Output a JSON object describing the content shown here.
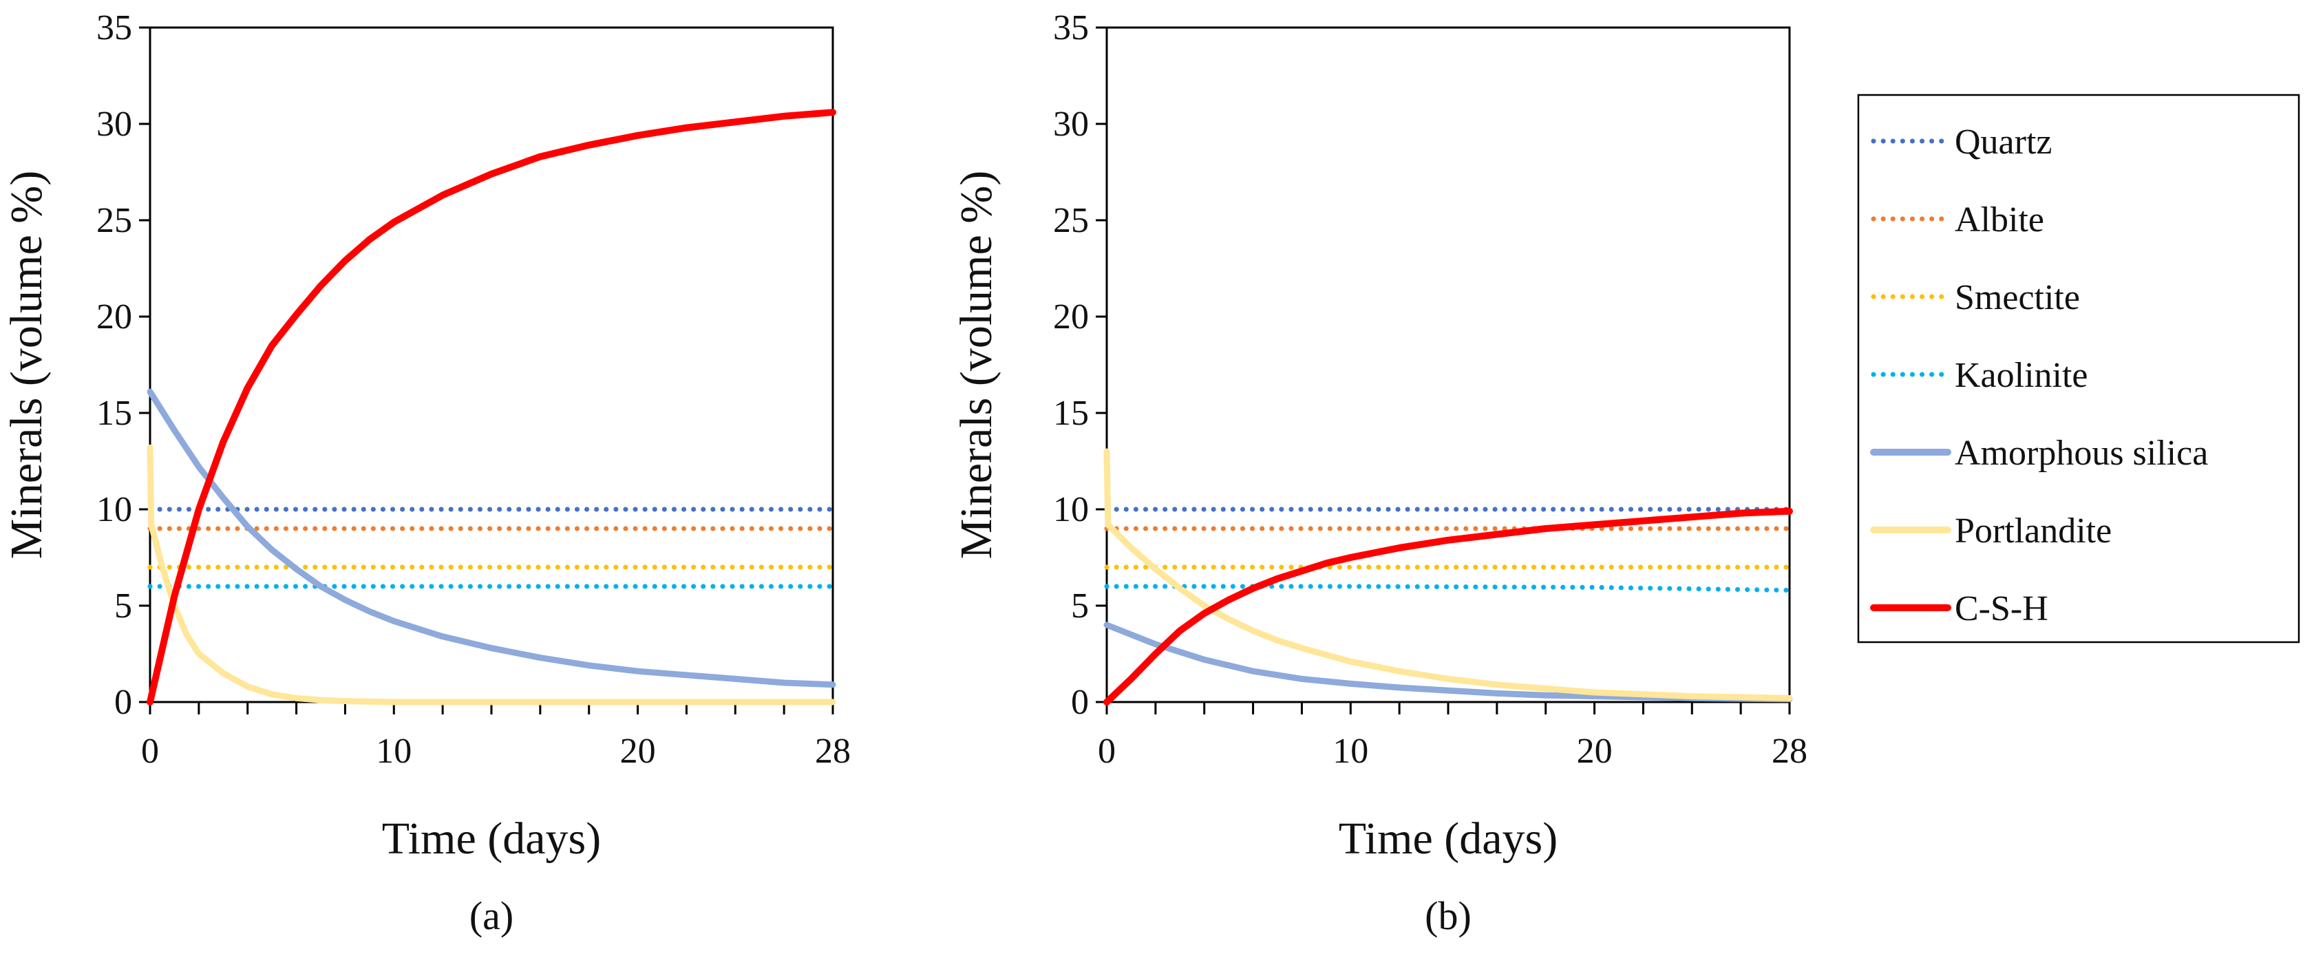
{
  "chart_data": [
    {
      "type": "line",
      "panel_label": "(a)",
      "xlabel": "Time (days)",
      "ylabel": "Minerals (volume %)",
      "xlim": [
        0,
        28
      ],
      "ylim": [
        0,
        35
      ],
      "xticks": [
        0,
        10,
        20,
        28
      ],
      "yticks": [
        0,
        5,
        10,
        15,
        20,
        25,
        30,
        35
      ],
      "series": [
        {
          "name": "Quartz",
          "style": "dotted",
          "color": "#4472C4",
          "x": [
            0,
            28
          ],
          "y": [
            10,
            10
          ]
        },
        {
          "name": "Albite",
          "style": "dotted",
          "color": "#ED7D31",
          "x": [
            0,
            28
          ],
          "y": [
            9,
            9
          ]
        },
        {
          "name": "Smectite",
          "style": "dotted",
          "color": "#FFC000",
          "x": [
            0,
            28
          ],
          "y": [
            7,
            7
          ]
        },
        {
          "name": "Kaolinite",
          "style": "dotted",
          "color": "#00B0F0",
          "x": [
            0,
            28
          ],
          "y": [
            6,
            6
          ]
        },
        {
          "name": "Amorphous silica",
          "style": "solid",
          "color": "#8EA9DB",
          "x": [
            0,
            1,
            2,
            3,
            4,
            5,
            6,
            7,
            8,
            9,
            10,
            12,
            14,
            16,
            18,
            20,
            22,
            24,
            26,
            28
          ],
          "y": [
            16.1,
            14.1,
            12.2,
            10.6,
            9.1,
            7.9,
            6.9,
            6.0,
            5.3,
            4.7,
            4.2,
            3.4,
            2.8,
            2.3,
            1.9,
            1.6,
            1.4,
            1.2,
            1.0,
            0.9
          ]
        },
        {
          "name": "Portlandite",
          "style": "solid",
          "color": "#FFE699",
          "x": [
            0,
            0.05,
            0.5,
            1,
            1.5,
            2,
            3,
            4,
            5,
            6,
            7,
            8,
            10,
            28
          ],
          "y": [
            13.2,
            9.2,
            7.0,
            5.0,
            3.5,
            2.5,
            1.5,
            0.8,
            0.4,
            0.2,
            0.1,
            0.05,
            0,
            0
          ]
        },
        {
          "name": "C-S-H",
          "style": "solid",
          "color": "#FF0000",
          "x": [
            0,
            1,
            2,
            3,
            4,
            5,
            6,
            7,
            8,
            9,
            10,
            12,
            14,
            16,
            18,
            20,
            22,
            24,
            26,
            28
          ],
          "y": [
            0,
            5.5,
            10.0,
            13.5,
            16.3,
            18.5,
            20.1,
            21.6,
            22.9,
            24.0,
            24.9,
            26.3,
            27.4,
            28.3,
            28.9,
            29.4,
            29.8,
            30.1,
            30.4,
            30.6
          ]
        }
      ]
    },
    {
      "type": "line",
      "panel_label": "(b)",
      "xlabel": "Time (days)",
      "ylabel": "Minerals (volume %)",
      "xlim": [
        0,
        28
      ],
      "ylim": [
        0,
        35
      ],
      "xticks": [
        0,
        10,
        20,
        28
      ],
      "yticks": [
        0,
        5,
        10,
        15,
        20,
        25,
        30,
        35
      ],
      "series": [
        {
          "name": "Quartz",
          "style": "dotted",
          "color": "#4472C4",
          "x": [
            0,
            28
          ],
          "y": [
            10,
            10
          ]
        },
        {
          "name": "Albite",
          "style": "dotted",
          "color": "#ED7D31",
          "x": [
            0,
            28
          ],
          "y": [
            9,
            9
          ]
        },
        {
          "name": "Smectite",
          "style": "dotted",
          "color": "#FFC000",
          "x": [
            0,
            28
          ],
          "y": [
            7,
            7
          ]
        },
        {
          "name": "Kaolinite",
          "style": "dotted",
          "color": "#00B0F0",
          "x": [
            0,
            10,
            20,
            28
          ],
          "y": [
            6,
            6,
            5.95,
            5.8
          ]
        },
        {
          "name": "Amorphous silica",
          "style": "solid",
          "color": "#8EA9DB",
          "x": [
            0,
            1,
            2,
            3,
            4,
            5,
            6,
            7,
            8,
            10,
            12,
            14,
            16,
            18,
            20,
            22,
            24,
            28
          ],
          "y": [
            4.0,
            3.5,
            3.0,
            2.6,
            2.2,
            1.9,
            1.6,
            1.4,
            1.2,
            0.95,
            0.75,
            0.6,
            0.45,
            0.35,
            0.3,
            0.25,
            0.2,
            0.15
          ]
        },
        {
          "name": "Portlandite",
          "style": "solid",
          "color": "#FFE699",
          "x": [
            0,
            0.05,
            1,
            2,
            3,
            4,
            5,
            6,
            7,
            8,
            10,
            12,
            14,
            16,
            18,
            20,
            22,
            24,
            26,
            28
          ],
          "y": [
            13.0,
            9.2,
            8.0,
            6.9,
            5.9,
            5.0,
            4.3,
            3.7,
            3.2,
            2.8,
            2.1,
            1.6,
            1.2,
            0.9,
            0.7,
            0.5,
            0.4,
            0.3,
            0.25,
            0.2
          ]
        },
        {
          "name": "C-S-H",
          "style": "solid",
          "color": "#FF0000",
          "x": [
            0,
            1,
            2,
            3,
            4,
            5,
            6,
            7,
            8,
            9,
            10,
            12,
            14,
            16,
            18,
            20,
            22,
            24,
            26,
            28
          ],
          "y": [
            0,
            1.2,
            2.5,
            3.7,
            4.6,
            5.3,
            5.9,
            6.4,
            6.8,
            7.2,
            7.5,
            8.0,
            8.4,
            8.7,
            9.0,
            9.2,
            9.4,
            9.6,
            9.8,
            9.9
          ]
        }
      ]
    }
  ],
  "legend": {
    "items": [
      {
        "label": "Quartz",
        "style": "dotted",
        "color": "#4472C4"
      },
      {
        "label": "Albite",
        "style": "dotted",
        "color": "#ED7D31"
      },
      {
        "label": "Smectite",
        "style": "dotted",
        "color": "#FFC000"
      },
      {
        "label": "Kaolinite",
        "style": "dotted",
        "color": "#00B0F0"
      },
      {
        "label": "Amorphous silica",
        "style": "solid",
        "color": "#8EA9DB"
      },
      {
        "label": "Portlandite",
        "style": "solid",
        "color": "#FFE699"
      },
      {
        "label": "C-S-H",
        "style": "solid",
        "color": "#FF0000"
      }
    ]
  }
}
